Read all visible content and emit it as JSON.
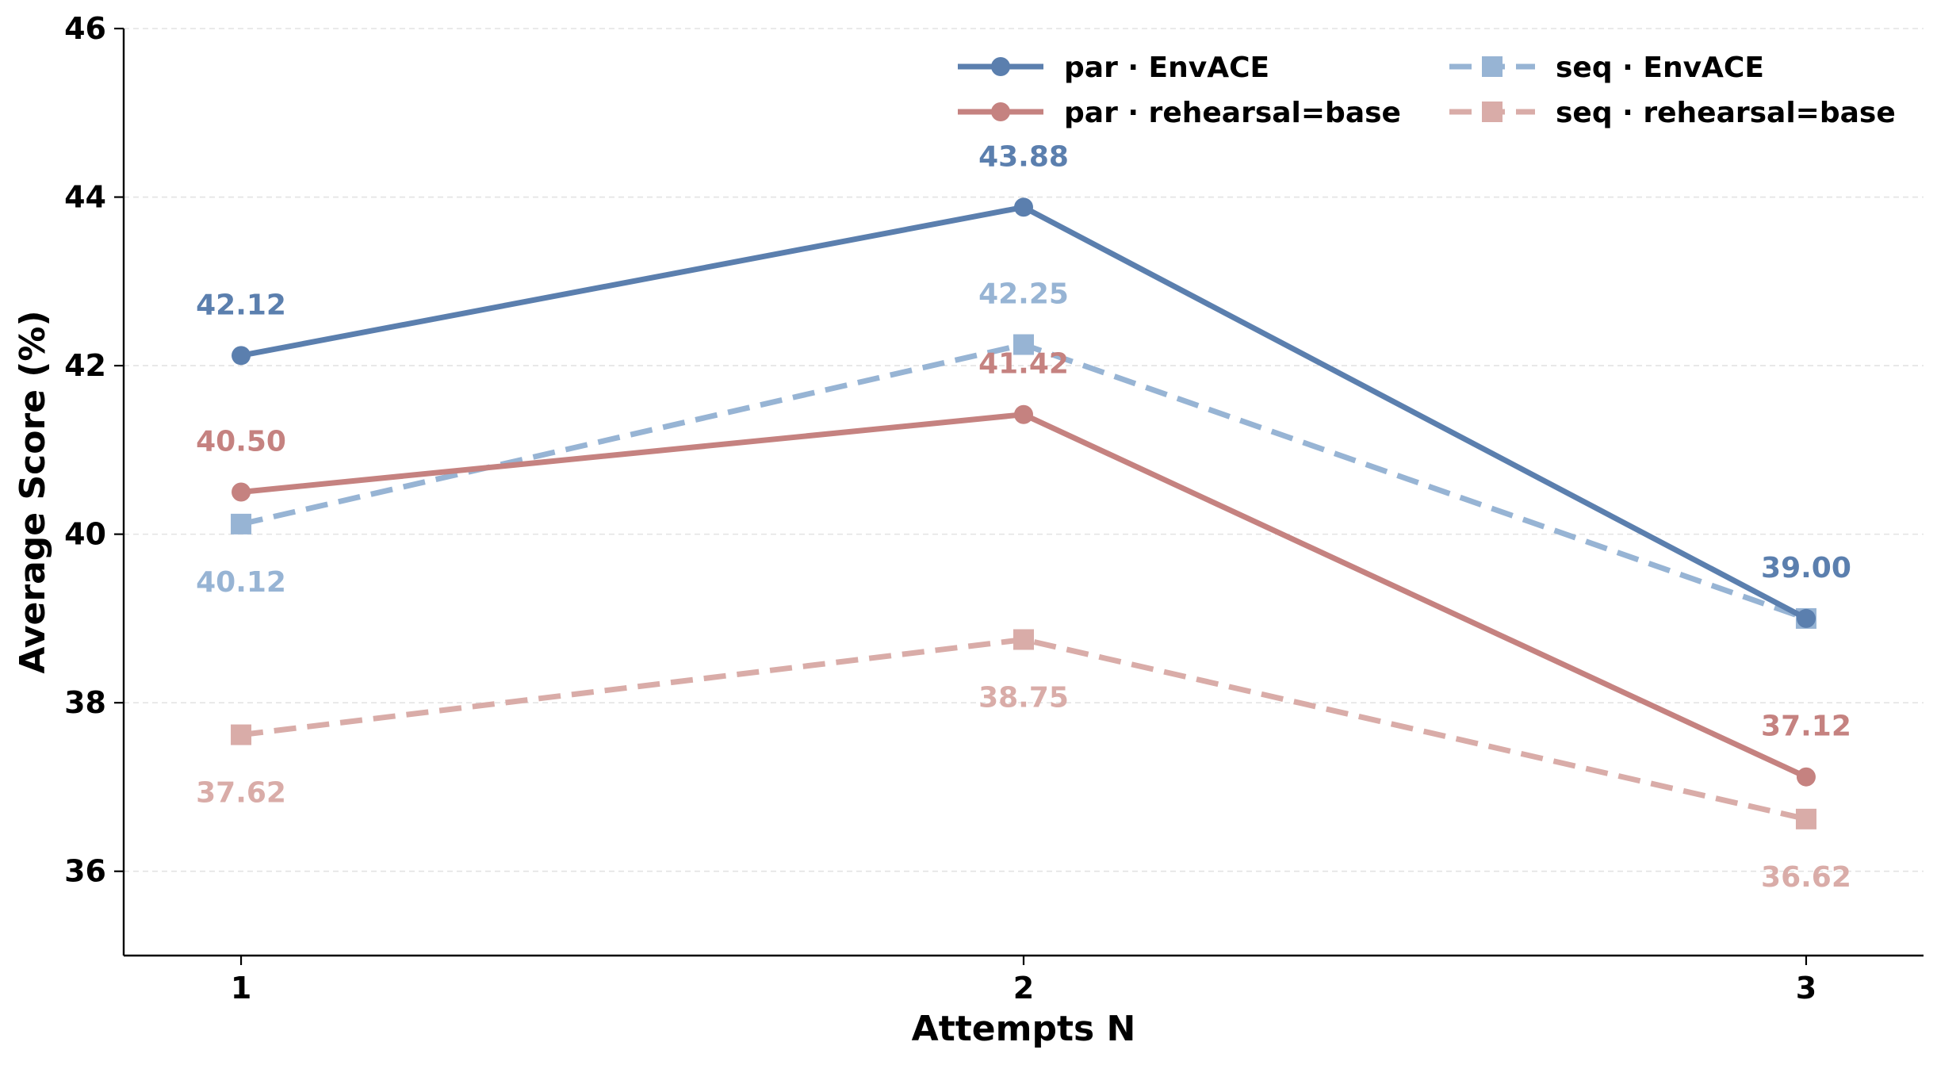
{
  "chart_data": {
    "type": "line",
    "title": "",
    "xlabel": "Attempts N",
    "ylabel": "Average Score (%)",
    "x": [
      1,
      2,
      3
    ],
    "x_tick_labels": [
      "1",
      "2",
      "3"
    ],
    "x_range": [
      0.85,
      3.15
    ],
    "ylim": [
      35,
      46
    ],
    "y_ticks": [
      36,
      38,
      40,
      42,
      44,
      46
    ],
    "y_tick_labels": [
      "36",
      "38",
      "40",
      "42",
      "44",
      "46"
    ],
    "grid": "horizontal dashed",
    "legend_position": "top-right",
    "series": [
      {
        "name": "par · EnvACE",
        "values": [
          42.12,
          43.88,
          39.0
        ],
        "value_labels": [
          "42.12",
          "43.88",
          "39.00"
        ],
        "color": "#5b7fae",
        "line_style": "solid",
        "marker": "circle"
      },
      {
        "name": "par · rehearsal=base",
        "values": [
          40.5,
          41.42,
          37.12
        ],
        "value_labels": [
          "40.50",
          "41.42",
          "37.12"
        ],
        "color": "#c58280",
        "line_style": "solid",
        "marker": "circle"
      },
      {
        "name": "seq · EnvACE",
        "values": [
          40.12,
          42.25,
          39.0
        ],
        "value_labels": [
          "40.12",
          "42.25",
          ""
        ],
        "color": "#97b4d4",
        "line_style": "dashed",
        "marker": "square"
      },
      {
        "name": "seq · rehearsal=base",
        "values": [
          37.62,
          38.75,
          36.62
        ],
        "value_labels": [
          "37.62",
          "38.75",
          "36.62"
        ],
        "color": "#d9aca8",
        "line_style": "dashed",
        "marker": "square"
      }
    ]
  }
}
